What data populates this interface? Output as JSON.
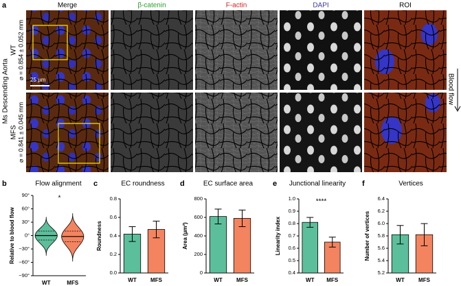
{
  "figure": {
    "panel": "a",
    "columns": [
      "Merge",
      "β-catenin",
      "F-actin",
      "DAPI",
      "ROI"
    ],
    "side_label": "Ms Descending Aorta",
    "rows": [
      {
        "label": "WT",
        "diameter": "⌀ = 0.854 ± 0.052 mm"
      },
      {
        "label": "MFS",
        "diameter": "⌀ = 0.841 ± 0.045 mm"
      }
    ],
    "scale_bar": "25 µm",
    "flow_label": "Blood flow"
  },
  "chart_data": [
    {
      "type": "violin",
      "panel": "b",
      "title": "Flow alignment",
      "y_label": "Relative to blood flow",
      "categories": [
        "WT",
        "MFS"
      ],
      "colors": [
        "#5cbf9b",
        "#f4845f"
      ],
      "median": [
        0,
        -2
      ],
      "q1": [
        -10,
        -14
      ],
      "q3": [
        10,
        10
      ],
      "min": [
        -45,
        -58
      ],
      "max": [
        42,
        50
      ],
      "ylim": [
        -90,
        90
      ],
      "yticks": [
        {
          "value": -90,
          "label": "−90°"
        },
        {
          "value": -60,
          "label": "−60°"
        },
        {
          "value": -30,
          "label": "−30°"
        },
        {
          "value": 0,
          "label": "0°"
        },
        {
          "value": 30,
          "label": "30°"
        },
        {
          "value": 60,
          "label": "60°"
        },
        {
          "value": 90,
          "label": "90°"
        }
      ],
      "annotation": "*"
    },
    {
      "type": "bar",
      "panel": "c",
      "title": "EC roundness",
      "y_label": "Roundness",
      "categories": [
        "WT",
        "MFS"
      ],
      "colors": [
        "#5cbf9b",
        "#f4845f"
      ],
      "values": [
        0.42,
        0.47
      ],
      "errors": [
        0.08,
        0.09
      ],
      "ylim": [
        0,
        0.8
      ],
      "yticks": [
        {
          "value": 0,
          "label": "0.0"
        },
        0.2,
        0.4,
        0.6,
        0.8
      ]
    },
    {
      "type": "bar",
      "panel": "d",
      "title": "EC surface area",
      "y_label": "Area (µm²)",
      "categories": [
        "WT",
        "MFS"
      ],
      "colors": [
        "#5cbf9b",
        "#f4845f"
      ],
      "values": [
        610,
        590
      ],
      "errors": [
        80,
        90
      ],
      "ylim": [
        0,
        800
      ],
      "yticks": [
        0,
        200,
        400,
        600,
        800
      ]
    },
    {
      "type": "bar",
      "panel": "e",
      "title": "Junctional linearity",
      "y_label": "Linearity index",
      "categories": [
        "WT",
        "MFS"
      ],
      "colors": [
        "#5cbf9b",
        "#f4845f"
      ],
      "values": [
        0.81,
        0.65
      ],
      "errors": [
        0.04,
        0.04
      ],
      "ylim": [
        0.4,
        1.0
      ],
      "yticks": [
        0.4,
        0.5,
        0.6,
        0.7,
        0.8,
        0.9,
        {
          "value": 1.0,
          "label": "1.0"
        }
      ],
      "annotation": "****"
    },
    {
      "type": "bar",
      "panel": "f",
      "title": "Vertices",
      "y_label": "Number of vertices",
      "categories": [
        "WT",
        "MFS"
      ],
      "colors": [
        "#5cbf9b",
        "#f4845f"
      ],
      "values": [
        5.82,
        5.82
      ],
      "errors": [
        0.15,
        0.18
      ],
      "ylim": [
        5.2,
        6.4
      ],
      "yticks": [
        5.2,
        5.4,
        5.6,
        5.8,
        {
          "value": 6.0,
          "label": "6.0"
        },
        6.2,
        6.4
      ]
    }
  ]
}
